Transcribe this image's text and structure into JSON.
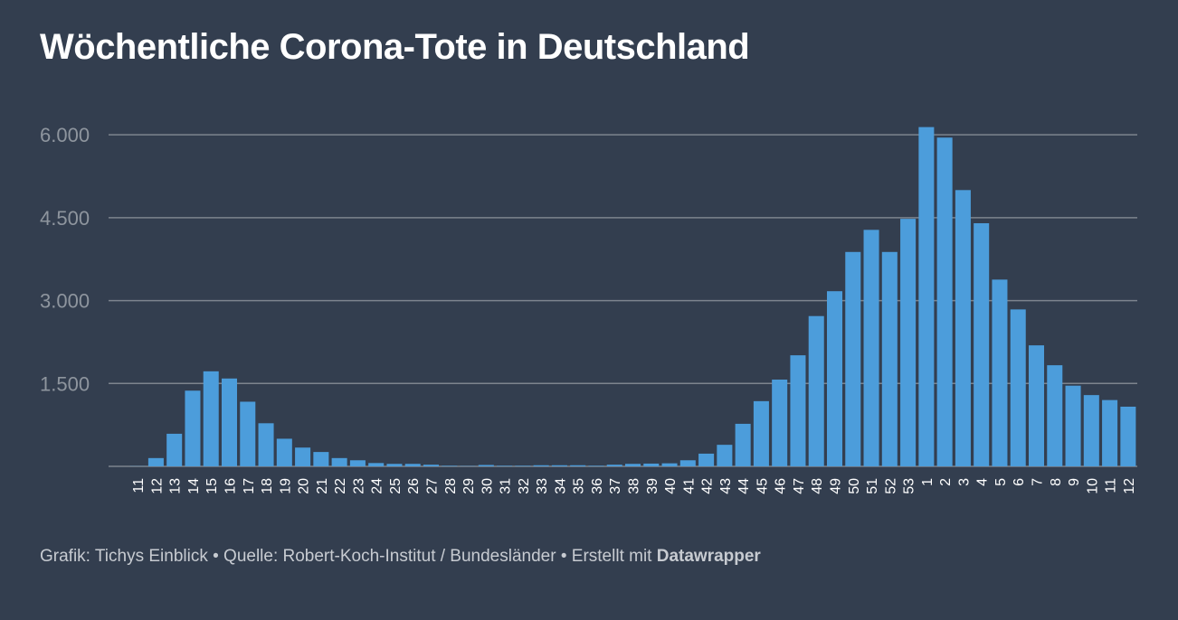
{
  "title": "Wöchentliche Corona-Tote in Deutschland",
  "footer": {
    "prefix": "Grafik: Tichys Einblick • Quelle: Robert-Koch-Institut / Bundesländer • Erstellt mit ",
    "brand": "Datawrapper"
  },
  "colors": {
    "background": "#333e4f",
    "bar": "#4c9ddb",
    "grid": "#7d848e",
    "tick_label": "#8e959e",
    "x_label": "#ffffff"
  },
  "chart_data": {
    "type": "bar",
    "title": "Wöchentliche Corona-Tote in Deutschland",
    "xlabel": "",
    "ylabel": "",
    "ylim": [
      0,
      6150
    ],
    "yticks": [
      1500,
      3000,
      4500,
      6000
    ],
    "ytick_labels": [
      "1.500",
      "3.000",
      "4.500",
      "6.000"
    ],
    "grid": true,
    "categories": [
      "11",
      "12",
      "13",
      "14",
      "15",
      "16",
      "17",
      "18",
      "19",
      "20",
      "21",
      "22",
      "23",
      "24",
      "25",
      "26",
      "27",
      "28",
      "29",
      "30",
      "31",
      "32",
      "33",
      "34",
      "35",
      "36",
      "37",
      "38",
      "39",
      "40",
      "41",
      "42",
      "43",
      "44",
      "45",
      "46",
      "47",
      "48",
      "49",
      "50",
      "51",
      "52",
      "53",
      "1",
      "2",
      "3",
      "4",
      "5",
      "6",
      "7",
      "8",
      "9",
      "10",
      "11",
      "12"
    ],
    "values": [
      3,
      150,
      590,
      1370,
      1720,
      1590,
      1170,
      780,
      500,
      340,
      260,
      150,
      110,
      60,
      45,
      45,
      30,
      10,
      5,
      25,
      10,
      10,
      20,
      20,
      20,
      10,
      30,
      45,
      50,
      55,
      110,
      230,
      390,
      770,
      1180,
      1570,
      2010,
      2720,
      3170,
      3880,
      4280,
      3880,
      4480,
      6140,
      5950,
      5000,
      4400,
      3380,
      2840,
      2190,
      1830,
      1460,
      1290,
      1200,
      1080
    ]
  }
}
